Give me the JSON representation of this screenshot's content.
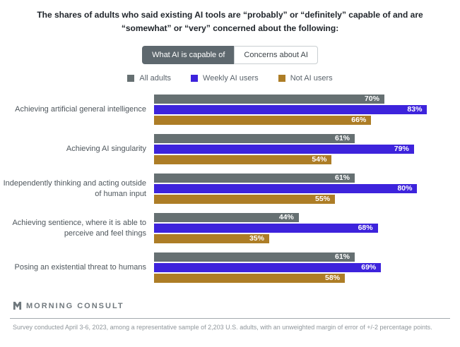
{
  "title": "The shares of adults who said existing AI tools are “probably” or “definitely” capable of and are “somewhat” or “very” concerned about the following:",
  "tabs": [
    {
      "label": "What AI is capable of",
      "active": true
    },
    {
      "label": "Concerns about AI",
      "active": false
    }
  ],
  "legend": [
    {
      "label": "All adults",
      "color": "#667072"
    },
    {
      "label": "Weekly AI users",
      "color": "#3D23DC"
    },
    {
      "label": "Not AI users",
      "color": "#AD7D26"
    }
  ],
  "chart_data": {
    "type": "bar",
    "orientation": "horizontal",
    "title": "What AI is capable of",
    "categories": [
      "Achieving artificial general intelligence",
      "Achieving AI singularity",
      "Independently thinking and acting outside of human input",
      "Achieving sentience, where it is able to perceive and feel things",
      "Posing an existential threat to humans"
    ],
    "series": [
      {
        "name": "All adults",
        "color": "#667072",
        "values": [
          70,
          61,
          61,
          44,
          61
        ]
      },
      {
        "name": "Weekly AI users",
        "color": "#3D23DC",
        "values": [
          83,
          79,
          80,
          68,
          69
        ]
      },
      {
        "name": "Not AI users",
        "color": "#AD7D26",
        "values": [
          66,
          54,
          55,
          35,
          58
        ]
      }
    ],
    "value_suffix": "%",
    "value_labels": "inside-right",
    "xlim": [
      0,
      93
    ],
    "grid": false,
    "legend_position": "top"
  },
  "footer": {
    "brand": "MORNING CONSULT",
    "footnote": "Survey conducted April 3-6, 2023, among a representative sample of 2,203 U.S. adults, with an unweighted margin of error of +/-2 percentage points."
  }
}
